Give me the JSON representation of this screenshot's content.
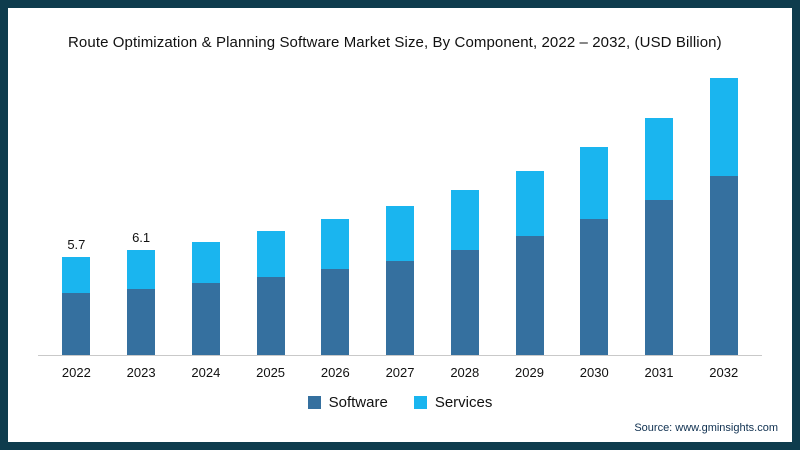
{
  "frame": {
    "border_color": "#0e3c4d",
    "background": "#ffffff"
  },
  "title": "Route Optimization & Planning Software Market Size, By Component, 2022 – 2032, (USD Billion)",
  "source": "Source: www.gminsights.com",
  "legend": [
    {
      "label": "Software",
      "color": "#35709f"
    },
    {
      "label": "Services",
      "color": "#1ab5ef"
    }
  ],
  "chart_data": {
    "type": "bar",
    "stacked": true,
    "title": "Route Optimization & Planning Software Market Size, By Component, 2022 – 2032, (USD Billion)",
    "xlabel": "",
    "ylabel": "USD Billion",
    "ylim": [
      0,
      17
    ],
    "grid": false,
    "legend_position": "bottom",
    "categories": [
      "2022",
      "2023",
      "2024",
      "2025",
      "2026",
      "2027",
      "2028",
      "2029",
      "2030",
      "2031",
      "2032"
    ],
    "series": [
      {
        "name": "Software",
        "color": "#35709f",
        "values": [
          3.6,
          3.85,
          4.2,
          4.55,
          5.0,
          5.5,
          6.1,
          6.9,
          7.9,
          9.0,
          10.4
        ]
      },
      {
        "name": "Services",
        "color": "#1ab5ef",
        "values": [
          2.1,
          2.25,
          2.4,
          2.65,
          2.9,
          3.2,
          3.5,
          3.8,
          4.2,
          4.8,
          5.7
        ]
      }
    ],
    "totals": [
      5.7,
      6.1,
      6.6,
      7.2,
      7.9,
      8.7,
      9.6,
      10.7,
      12.1,
      13.8,
      16.1
    ],
    "data_labels": [
      {
        "category": "2022",
        "value": "5.7"
      },
      {
        "category": "2023",
        "value": "6.1"
      }
    ]
  }
}
